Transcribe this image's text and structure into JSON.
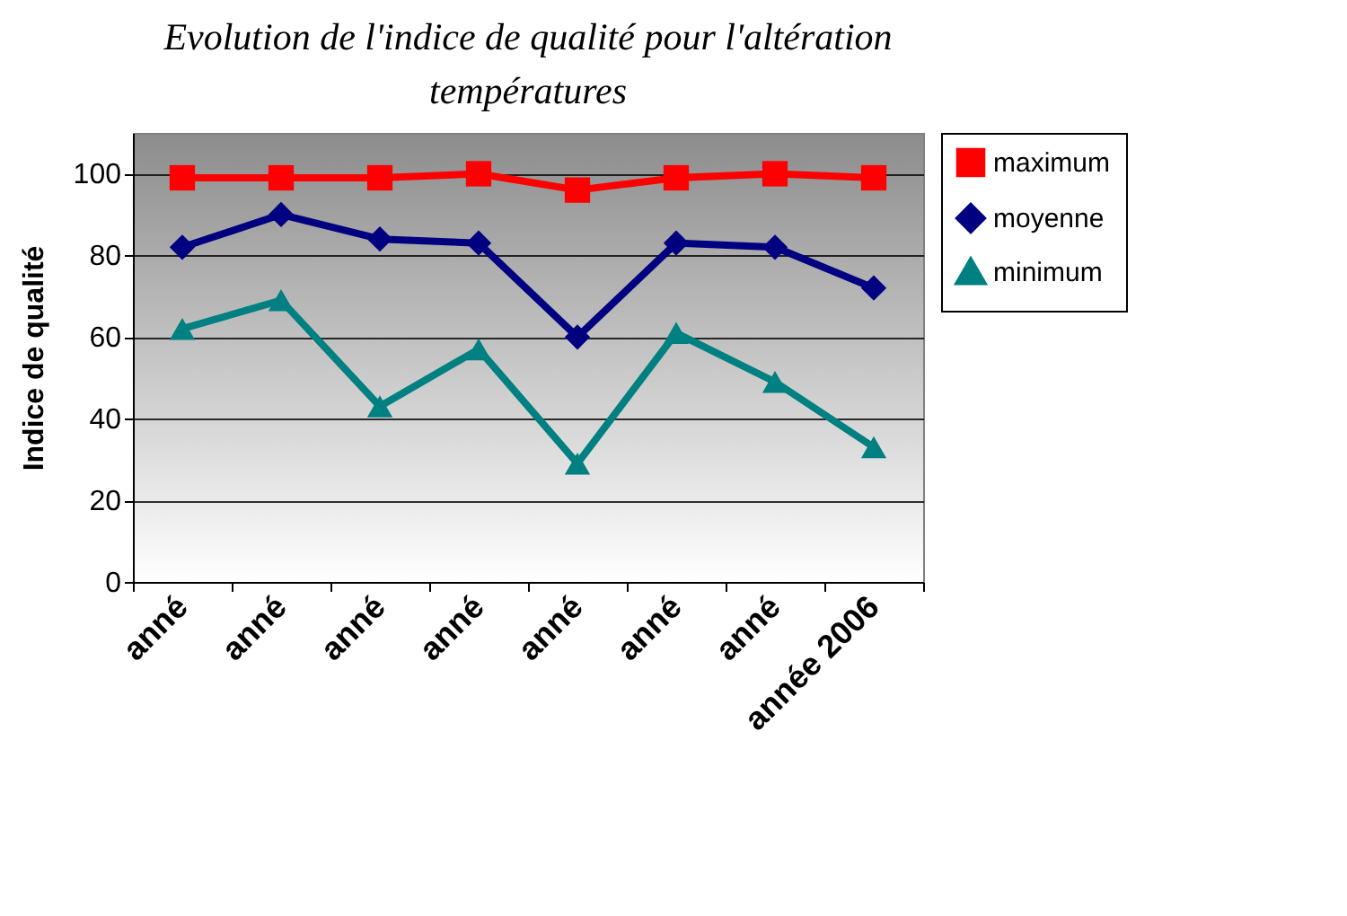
{
  "chart_data": {
    "type": "line",
    "title": "Evolution de l'indice de qualité pour l'altération températures",
    "ylabel": "Indice de qualité",
    "categories": [
      "anné",
      "anné",
      "anné",
      "anné",
      "anné",
      "anné",
      "anné",
      "année 2006"
    ],
    "series": [
      {
        "name": "maximum",
        "color": "#ff0000",
        "marker": "square",
        "values": [
          99,
          99,
          99,
          100,
          96,
          99,
          100,
          99
        ]
      },
      {
        "name": "moyenne",
        "color": "#000080",
        "marker": "diamond",
        "values": [
          82,
          90,
          84,
          83,
          60,
          83,
          82,
          72
        ]
      },
      {
        "name": "minimum",
        "color": "#008080",
        "marker": "triangle",
        "values": [
          62,
          69,
          43,
          57,
          29,
          61,
          49,
          33
        ]
      }
    ],
    "ylim": [
      0,
      110
    ],
    "yticks": [
      0,
      20,
      40,
      60,
      80,
      100
    ],
    "grid": "y",
    "legend": "right",
    "line_style": "solid"
  }
}
